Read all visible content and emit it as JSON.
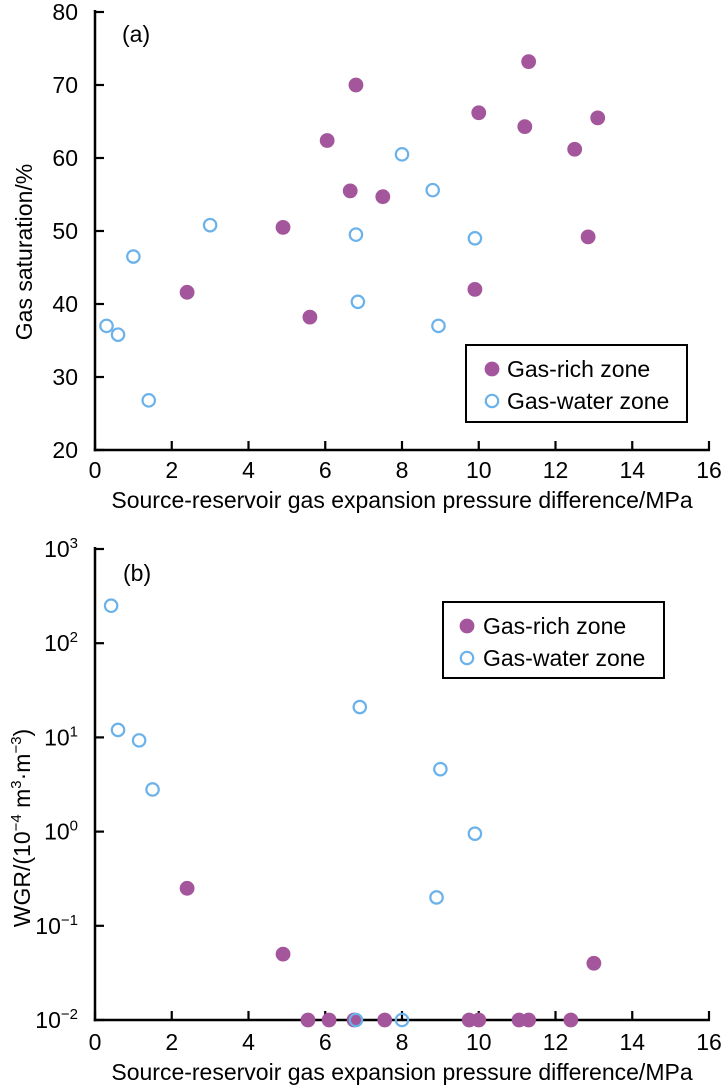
{
  "figure": {
    "background": "#ffffff",
    "axis_color": "#000000",
    "colors": {
      "gas_rich": "#a4569c",
      "gas_water": "#6cb2ea"
    }
  },
  "legend": {
    "items": [
      {
        "label": "Gas-rich zone",
        "marker": "filled-circle",
        "color": "#a4569c"
      },
      {
        "label": "Gas-water zone",
        "marker": "open-circle",
        "color": "#6cb2ea"
      }
    ]
  },
  "chart_data": [
    {
      "type": "scatter",
      "panel_label": "(a)",
      "xlabel": "Source-reservoir gas expansion pressure difference/MPa",
      "ylabel_segments": [
        {
          "text": "Gas saturation/%"
        }
      ],
      "yscale": "linear",
      "xlim": [
        0,
        16
      ],
      "ylim": [
        20,
        80
      ],
      "xticks": [
        {
          "label": "0",
          "value": 0
        },
        {
          "label": "2",
          "value": 2
        },
        {
          "label": "4",
          "value": 4
        },
        {
          "label": "6",
          "value": 6
        },
        {
          "label": "8",
          "value": 8
        },
        {
          "label": "10",
          "value": 10
        },
        {
          "label": "12",
          "value": 12
        },
        {
          "label": "14",
          "value": 14
        },
        {
          "label": "16",
          "value": 16
        }
      ],
      "yticks": [
        {
          "label": "20",
          "value": 20
        },
        {
          "label": "30",
          "value": 30
        },
        {
          "label": "40",
          "value": 40
        },
        {
          "label": "50",
          "value": 50
        },
        {
          "label": "60",
          "value": 60
        },
        {
          "label": "70",
          "value": 70
        },
        {
          "label": "80",
          "value": 80
        }
      ],
      "legend_position": "bottom-right",
      "grid": false,
      "series": [
        {
          "name": "Gas-rich zone",
          "marker": "filled-circle",
          "color": "#a4569c",
          "points": [
            [
              2.4,
              41.6
            ],
            [
              4.9,
              50.5
            ],
            [
              5.6,
              38.2
            ],
            [
              6.05,
              62.4
            ],
            [
              6.65,
              55.5
            ],
            [
              6.8,
              70.0
            ],
            [
              7.5,
              54.7
            ],
            [
              9.9,
              42.0
            ],
            [
              10.0,
              66.2
            ],
            [
              11.2,
              64.3
            ],
            [
              11.3,
              73.2
            ],
            [
              12.5,
              61.2
            ],
            [
              12.85,
              49.2
            ],
            [
              13.1,
              65.5
            ]
          ]
        },
        {
          "name": "Gas-water zone",
          "marker": "open-circle",
          "color": "#6cb2ea",
          "points": [
            [
              0.3,
              37.0
            ],
            [
              0.6,
              35.8
            ],
            [
              1.0,
              46.5
            ],
            [
              1.4,
              26.8
            ],
            [
              3.0,
              50.8
            ],
            [
              6.8,
              49.5
            ],
            [
              6.85,
              40.3
            ],
            [
              8.0,
              60.5
            ],
            [
              8.8,
              55.6
            ],
            [
              8.95,
              37.0
            ],
            [
              9.9,
              49.0
            ]
          ]
        }
      ]
    },
    {
      "type": "scatter",
      "panel_label": "(b)",
      "xlabel": "Source-reservoir gas expansion pressure difference/MPa",
      "ylabel_segments": [
        {
          "text": "WGR/(10"
        },
        {
          "text": "−4",
          "sup": true
        },
        {
          "text": " m"
        },
        {
          "text": "3",
          "sup": true
        },
        {
          "text": "·m"
        },
        {
          "text": "−3",
          "sup": true
        },
        {
          "text": ")"
        }
      ],
      "yscale": "log",
      "xlim": [
        0,
        16
      ],
      "ylim": [
        0.01,
        1000
      ],
      "xticks": [
        {
          "label": "0",
          "value": 0
        },
        {
          "label": "2",
          "value": 2
        },
        {
          "label": "4",
          "value": 4
        },
        {
          "label": "6",
          "value": 6
        },
        {
          "label": "8",
          "value": 8
        },
        {
          "label": "10",
          "value": 10
        },
        {
          "label": "12",
          "value": 12
        },
        {
          "label": "14",
          "value": 14
        },
        {
          "label": "16",
          "value": 16
        }
      ],
      "yticks": [
        {
          "base": "10",
          "exp": "3",
          "value": 1000
        },
        {
          "base": "10",
          "exp": "2",
          "value": 100
        },
        {
          "base": "10",
          "exp": "1",
          "value": 10
        },
        {
          "base": "10",
          "exp": "0",
          "value": 1
        },
        {
          "base": "10",
          "exp": "−1",
          "value": 0.1
        },
        {
          "base": "10",
          "exp": "−2",
          "value": 0.01
        }
      ],
      "legend_position": "top-center",
      "grid": false,
      "series": [
        {
          "name": "Gas-rich zone",
          "marker": "filled-circle",
          "color": "#a4569c",
          "points": [
            [
              2.4,
              0.25
            ],
            [
              4.9,
              0.05
            ],
            [
              5.55,
              0.01
            ],
            [
              6.1,
              0.01
            ],
            [
              6.75,
              0.01
            ],
            [
              7.55,
              0.01
            ],
            [
              9.75,
              0.01
            ],
            [
              10.0,
              0.01
            ],
            [
              11.05,
              0.01
            ],
            [
              11.3,
              0.01
            ],
            [
              12.4,
              0.01
            ],
            [
              13.0,
              0.04
            ]
          ]
        },
        {
          "name": "Gas-water zone",
          "marker": "open-circle",
          "color": "#6cb2ea",
          "points": [
            [
              0.42,
              250
            ],
            [
              0.6,
              12
            ],
            [
              1.15,
              9.3
            ],
            [
              1.5,
              2.8
            ],
            [
              6.9,
              21
            ],
            [
              6.8,
              0.01
            ],
            [
              8.0,
              0.01
            ],
            [
              8.9,
              0.2
            ],
            [
              9.0,
              4.6
            ],
            [
              9.9,
              0.95
            ]
          ]
        }
      ]
    }
  ]
}
